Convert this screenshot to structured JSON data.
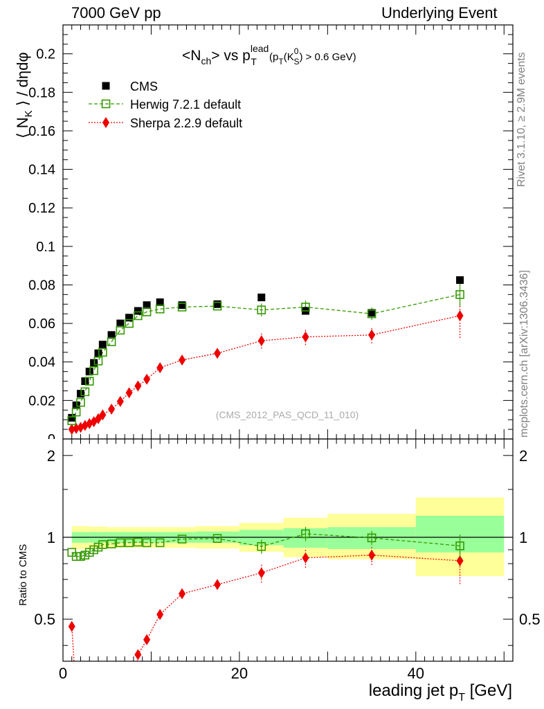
{
  "header": {
    "left": "7000 GeV pp",
    "right": "Underlying Event"
  },
  "side_labels": {
    "rivet": "Rivet 3.1.10, ≥ 2.9M events",
    "mcplots": "mcplots.cern.ch [arXiv:1306.3436]"
  },
  "watermark": "(CMS_2012_PAS_QCD_11_010)",
  "colors": {
    "cms": "#000000",
    "herwig": "#339900",
    "sherpa": "#ee0000",
    "band_inner": "#99ff99",
    "band_outer": "#ffff99"
  },
  "chart_data": [
    {
      "type": "scatter",
      "title": "<N_ch> vs p_T^lead (p_T(K_S^0) > 0.6 GeV)",
      "xlabel": "leading jet p_T [GeV]",
      "ylabel": "⟨ N_K ⟩ / dηdφ",
      "xlim": [
        0,
        51
      ],
      "ylim": [
        0,
        0.215
      ],
      "xticks": [
        0,
        20,
        40
      ],
      "yticks": [
        0.02,
        0.04,
        0.06,
        0.08,
        0.1,
        0.12,
        0.14,
        0.16,
        0.18,
        0.2
      ],
      "yticklabels": [
        "0.02",
        "0.04",
        "0.06",
        "0.08",
        "0.1",
        "0.12",
        "0.14",
        "0.16",
        "0.18",
        "0.2"
      ],
      "legend_position": "top-left",
      "series": [
        {
          "name": "CMS",
          "marker": "filled-square",
          "x": [
            1.0,
            1.5,
            2.0,
            2.5,
            3.0,
            3.5,
            4.0,
            4.5,
            5.5,
            6.5,
            7.5,
            8.5,
            9.5,
            11.0,
            13.5,
            17.5,
            22.5,
            27.5,
            35.0,
            45.0
          ],
          "y": [
            0.011,
            0.0175,
            0.0235,
            0.03,
            0.035,
            0.0395,
            0.0445,
            0.049,
            0.054,
            0.06,
            0.063,
            0.0665,
            0.0695,
            0.071,
            0.0695,
            0.07,
            0.0735,
            0.0665,
            0.0655,
            0.0825
          ]
        },
        {
          "name": "Herwig 7.2.1 default",
          "marker": "open-square",
          "line": "dashed",
          "x": [
            1.0,
            1.5,
            2.0,
            2.5,
            3.0,
            3.5,
            4.0,
            4.5,
            5.5,
            6.5,
            7.5,
            8.5,
            9.5,
            11.0,
            13.5,
            17.5,
            22.5,
            27.5,
            35.0,
            45.0
          ],
          "y": [
            0.0095,
            0.014,
            0.019,
            0.0245,
            0.03,
            0.0355,
            0.0405,
            0.045,
            0.0505,
            0.0565,
            0.06,
            0.064,
            0.066,
            0.0675,
            0.0685,
            0.069,
            0.067,
            0.0685,
            0.065,
            0.075
          ]
        },
        {
          "name": "Sherpa 2.2.9 default",
          "marker": "filled-diamond",
          "line": "dotted",
          "x": [
            1.0,
            1.5,
            2.0,
            2.5,
            3.0,
            3.5,
            4.0,
            4.5,
            5.5,
            6.5,
            7.5,
            8.5,
            9.5,
            11.0,
            13.5,
            17.5,
            22.5,
            27.5,
            35.0,
            45.0
          ],
          "y": [
            0.005,
            0.0055,
            0.006,
            0.007,
            0.008,
            0.009,
            0.0105,
            0.0125,
            0.0155,
            0.0195,
            0.024,
            0.0275,
            0.031,
            0.037,
            0.041,
            0.0445,
            0.051,
            0.053,
            0.054,
            0.064
          ]
        }
      ]
    },
    {
      "type": "scatter",
      "ylabel": "Ratio to CMS",
      "xlabel": "leading jet p_T [GeV]",
      "xlim": [
        0,
        51
      ],
      "ylim": [
        0.35,
        2.3
      ],
      "log_y": true,
      "yticks": [
        0.5,
        1,
        2
      ],
      "yticklabels": [
        "0.5",
        "1",
        "2"
      ],
      "xticks": [
        0,
        20,
        40
      ],
      "xticklabels": [
        "0",
        "20",
        "40"
      ],
      "reference_line": 1,
      "uncertainty_bands": {
        "x_edges": [
          1,
          3,
          5,
          10,
          15,
          20,
          25,
          30,
          40,
          50
        ],
        "inner_low": [
          0.955,
          0.955,
          0.955,
          0.955,
          0.955,
          0.935,
          0.915,
          0.905,
          0.88
        ],
        "inner_high": [
          1.045,
          1.045,
          1.045,
          1.045,
          1.05,
          1.065,
          1.08,
          1.09,
          1.2
        ],
        "outer_low": [
          0.905,
          0.91,
          0.915,
          0.915,
          0.91,
          0.885,
          0.845,
          0.83,
          0.72
        ],
        "outer_high": [
          1.1,
          1.095,
          1.09,
          1.09,
          1.1,
          1.13,
          1.18,
          1.22,
          1.4
        ]
      },
      "series": [
        {
          "name": "Herwig 7.2.1 default",
          "x": [
            1.0,
            1.5,
            2.0,
            2.5,
            3.0,
            3.5,
            4.0,
            4.5,
            5.5,
            6.5,
            7.5,
            8.5,
            9.5,
            11.0,
            13.5,
            17.5,
            22.5,
            27.5,
            35.0,
            45.0
          ],
          "y": [
            0.88,
            0.85,
            0.85,
            0.86,
            0.88,
            0.9,
            0.92,
            0.94,
            0.945,
            0.955,
            0.955,
            0.96,
            0.955,
            0.955,
            0.985,
            0.99,
            0.925,
            1.03,
            0.995,
            0.93
          ]
        },
        {
          "name": "Sherpa 2.2.9 default",
          "x": [
            1.0,
            8.5,
            9.5,
            11.0,
            13.5,
            17.5,
            22.5,
            27.5,
            35.0,
            45.0
          ],
          "y": [
            0.47,
            0.37,
            0.42,
            0.52,
            0.62,
            0.67,
            0.74,
            0.84,
            0.86,
            0.82
          ]
        }
      ]
    }
  ]
}
